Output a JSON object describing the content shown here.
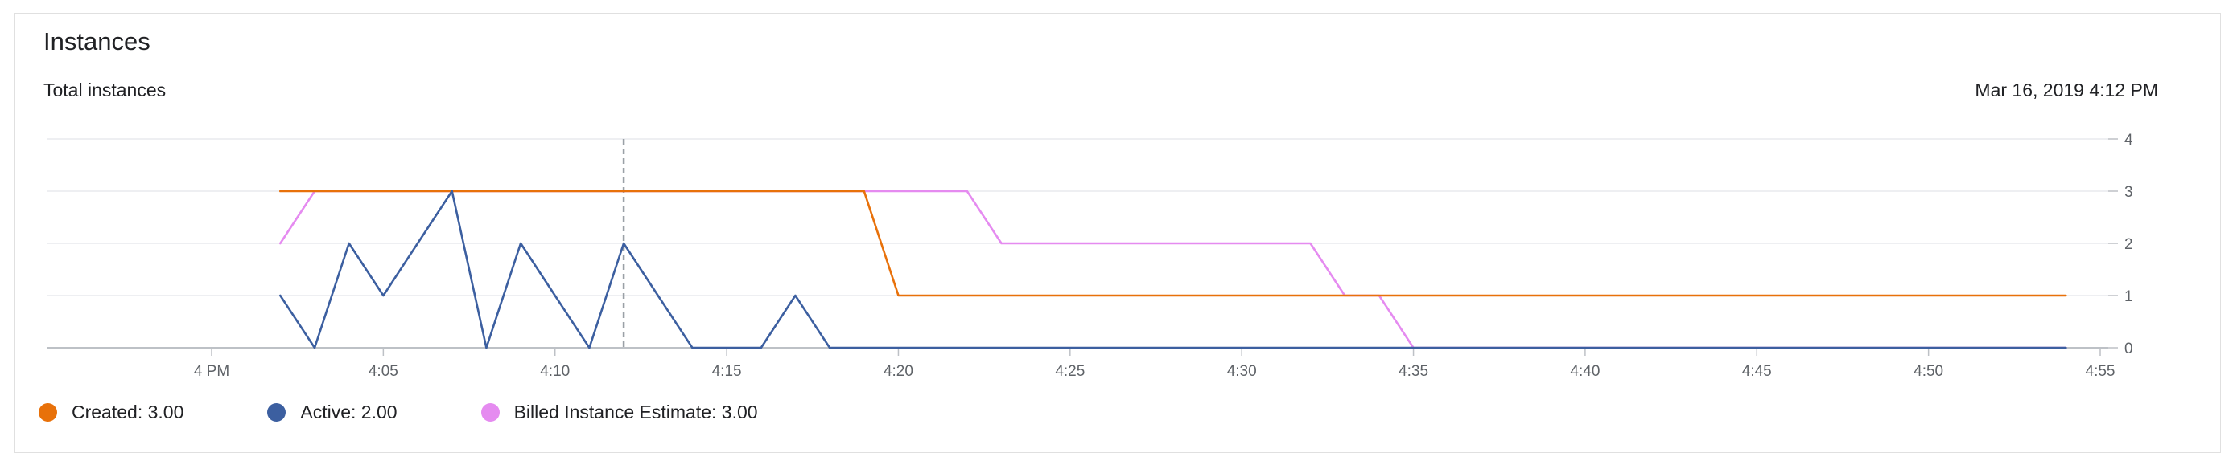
{
  "panel": {
    "title": "Instances",
    "subtitle": "Total instances",
    "timestamp": "Mar 16, 2019 4:12 PM"
  },
  "legend": [
    {
      "label": "Created: 3.00",
      "color": "#e8710a"
    },
    {
      "label": "Active: 2.00",
      "color": "#3c5fa0"
    },
    {
      "label": "Billed Instance Estimate: 3.00",
      "color": "#e58bf0"
    }
  ],
  "chart_data": {
    "type": "line",
    "x_unit": "minutes after 4 PM",
    "xlim": [
      -5,
      55
    ],
    "ylim": [
      0,
      4
    ],
    "x_ticks": [
      {
        "value": 0,
        "label": "4 PM"
      },
      {
        "value": 5,
        "label": "4:05"
      },
      {
        "value": 10,
        "label": "4:10"
      },
      {
        "value": 15,
        "label": "4:15"
      },
      {
        "value": 20,
        "label": "4:20"
      },
      {
        "value": 25,
        "label": "4:25"
      },
      {
        "value": 30,
        "label": "4:30"
      },
      {
        "value": 35,
        "label": "4:35"
      },
      {
        "value": 40,
        "label": "4:40"
      },
      {
        "value": 45,
        "label": "4:45"
      },
      {
        "value": 50,
        "label": "4:50"
      },
      {
        "value": 55,
        "label": "4:55"
      }
    ],
    "y_ticks": [
      0,
      1,
      2,
      3,
      4
    ],
    "y_axis_position": "right",
    "grid": true,
    "cursor_x": 12,
    "series": [
      {
        "name": "Created",
        "color": "#e8710a",
        "points": [
          [
            2,
            3
          ],
          [
            19,
            3
          ],
          [
            20,
            1
          ],
          [
            54,
            1
          ]
        ]
      },
      {
        "name": "Active",
        "color": "#3c5fa0",
        "points": [
          [
            2,
            1
          ],
          [
            3,
            0
          ],
          [
            4,
            2
          ],
          [
            5,
            1
          ],
          [
            6,
            2
          ],
          [
            7,
            3
          ],
          [
            8,
            0
          ],
          [
            9,
            2
          ],
          [
            10,
            1
          ],
          [
            11,
            0
          ],
          [
            12,
            2
          ],
          [
            13,
            1
          ],
          [
            14,
            0
          ],
          [
            16,
            0
          ],
          [
            17,
            1
          ],
          [
            18,
            0
          ],
          [
            54,
            0
          ]
        ]
      },
      {
        "name": "Billed Instance Estimate",
        "color": "#e58bf0",
        "points": [
          [
            2,
            2
          ],
          [
            3,
            3
          ],
          [
            22,
            3
          ],
          [
            23,
            2
          ],
          [
            32,
            2
          ],
          [
            33,
            1
          ],
          [
            34,
            1
          ],
          [
            35,
            0
          ],
          [
            54,
            0
          ]
        ]
      }
    ]
  }
}
